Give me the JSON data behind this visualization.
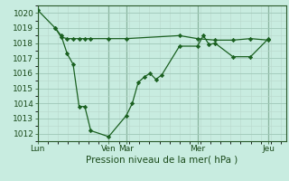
{
  "xlabel": "Pression niveau de la mer( hPa )",
  "bg_color": "#c8ece0",
  "grid_major_color": "#9fc8b8",
  "grid_minor_color": "#b8d8cc",
  "line_color": "#1a6020",
  "ylim": [
    1011.5,
    1020.5
  ],
  "yticks": [
    1012,
    1013,
    1014,
    1015,
    1016,
    1017,
    1018,
    1019,
    1020
  ],
  "day_labels": [
    "Lun",
    "Ven",
    "Mar",
    "Mer",
    "Jeu"
  ],
  "day_positions": [
    0.0,
    0.286,
    0.357,
    0.643,
    0.929
  ],
  "series1_x": [
    0.0,
    0.071,
    0.095,
    0.119,
    0.143,
    0.167,
    0.19,
    0.214,
    0.286,
    0.357,
    0.381,
    0.405,
    0.429,
    0.452,
    0.476,
    0.5,
    0.571,
    0.643,
    0.667,
    0.69,
    0.714,
    0.786,
    0.857,
    0.929
  ],
  "series1_y": [
    1020.2,
    1019.0,
    1018.5,
    1017.3,
    1016.6,
    1013.8,
    1013.8,
    1012.2,
    1011.8,
    1013.2,
    1014.0,
    1015.4,
    1015.75,
    1016.0,
    1015.6,
    1015.9,
    1017.8,
    1017.8,
    1018.5,
    1017.9,
    1018.0,
    1017.1,
    1017.1,
    1018.3
  ],
  "series2_x": [
    0.071,
    0.095,
    0.119,
    0.143,
    0.167,
    0.19,
    0.214,
    0.286,
    0.357,
    0.571,
    0.643,
    0.714,
    0.786,
    0.857,
    0.929
  ],
  "series2_y": [
    1019.0,
    1018.4,
    1018.3,
    1018.3,
    1018.3,
    1018.3,
    1018.3,
    1018.3,
    1018.3,
    1018.5,
    1018.3,
    1018.2,
    1018.2,
    1018.3,
    1018.2
  ],
  "xmin": 0.0,
  "xmax": 1.0
}
